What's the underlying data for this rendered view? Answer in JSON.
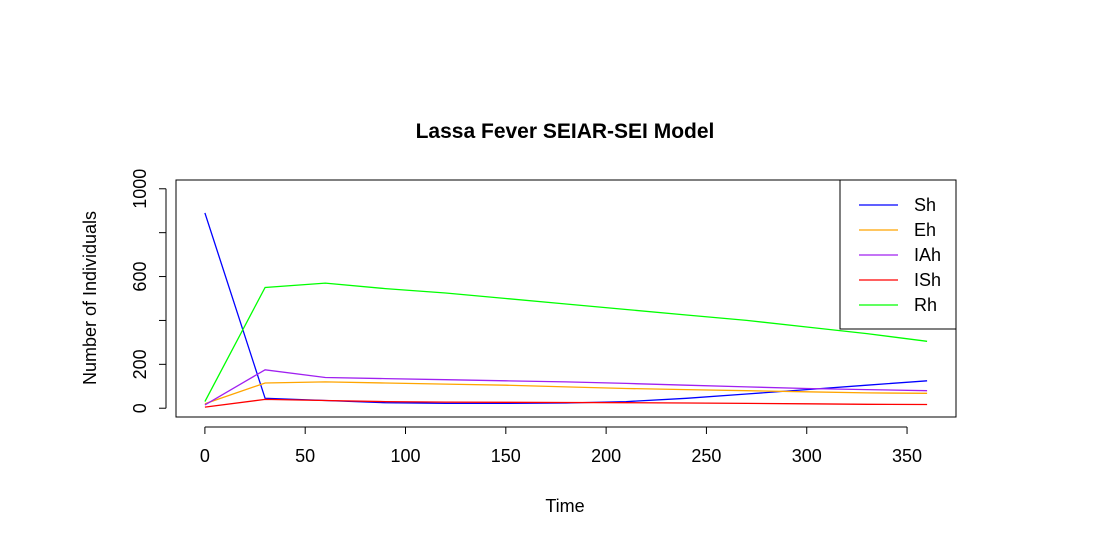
{
  "chart_data": {
    "type": "line",
    "title": "Lassa Fever SEIAR-SEI Model",
    "xlabel": "Time",
    "ylabel": "Number of Individuals",
    "xlim": [
      -14.4,
      374.4
    ],
    "ylim": [
      -40,
      1040
    ],
    "xticks": [
      0,
      50,
      100,
      150,
      200,
      250,
      300,
      350
    ],
    "yticks": [
      0,
      200,
      400,
      600,
      800,
      1000
    ],
    "ytick_labels": [
      "0",
      "200",
      "",
      "600",
      "",
      "1000"
    ],
    "grid": false,
    "legend_position": "top-right",
    "x": [
      0,
      30,
      60,
      90,
      120,
      150,
      180,
      210,
      240,
      270,
      300,
      330,
      360
    ],
    "series": [
      {
        "name": "Sh",
        "color": "#0000ff",
        "values": [
          890,
          45,
          35,
          25,
          22,
          22,
          24,
          30,
          45,
          65,
          85,
          105,
          125
        ]
      },
      {
        "name": "Eh",
        "color": "#ffa500",
        "values": [
          20,
          115,
          120,
          115,
          110,
          105,
          97,
          90,
          85,
          80,
          75,
          70,
          68
        ]
      },
      {
        "name": "IAh",
        "color": "#a020f0",
        "values": [
          15,
          175,
          140,
          135,
          130,
          125,
          120,
          113,
          105,
          97,
          90,
          85,
          80
        ]
      },
      {
        "name": "ISh",
        "color": "#ff0000",
        "values": [
          5,
          40,
          35,
          30,
          28,
          27,
          26,
          25,
          24,
          22,
          20,
          18,
          17
        ]
      },
      {
        "name": "Rh",
        "color": "#00ff00",
        "values": [
          30,
          550,
          570,
          545,
          525,
          500,
          475,
          450,
          425,
          400,
          370,
          340,
          305
        ]
      }
    ]
  }
}
